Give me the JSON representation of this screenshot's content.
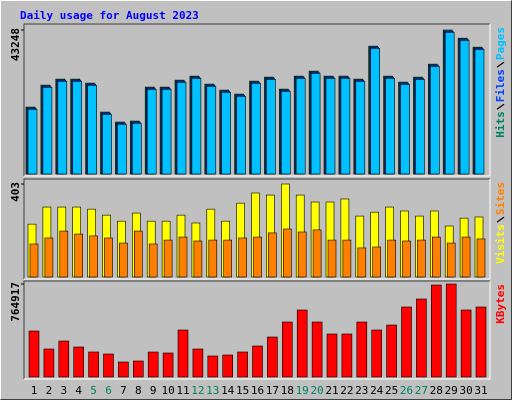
{
  "chart_data": [
    {
      "type": "bar",
      "title": "Daily usage for August 2023",
      "series": [
        {
          "name": "Hits",
          "color": "#00805c",
          "values": [
            20100,
            26700,
            28500,
            28500,
            27300,
            18600,
            15600,
            15900,
            26100,
            26100,
            28200,
            29400,
            27000,
            25200,
            24000,
            27900,
            29100,
            25500,
            29400,
            30900,
            29400,
            29400,
            28500,
            38400,
            29400,
            27600,
            29100,
            33000,
            43248,
            40800,
            38100
          ]
        },
        {
          "name": "Files",
          "color": "#0040ff",
          "values": [
            19800,
            26400,
            28200,
            28200,
            27000,
            18300,
            15300,
            15600,
            25800,
            25800,
            27900,
            29100,
            26700,
            24900,
            23700,
            27600,
            28800,
            25200,
            29100,
            30600,
            29100,
            29100,
            28200,
            38100,
            29100,
            27300,
            28800,
            32700,
            42900,
            40500,
            37800
          ]
        },
        {
          "name": "Pages",
          "color": "#00c0ff",
          "values": [
            19400,
            26000,
            27800,
            27800,
            26600,
            17900,
            14900,
            15200,
            25400,
            25400,
            27500,
            28700,
            26300,
            24500,
            23300,
            27200,
            28400,
            24800,
            28700,
            30200,
            28700,
            28700,
            27800,
            37700,
            28700,
            26900,
            28400,
            32300,
            42500,
            40100,
            37400
          ]
        }
      ],
      "ylim": [
        0,
        43248
      ],
      "yticks": [
        43248
      ]
    },
    {
      "type": "bar",
      "series": [
        {
          "name": "Visits",
          "color": "#ffff00",
          "values": [
            229,
            303,
            303,
            303,
            294,
            268,
            242,
            277,
            242,
            242,
            268,
            234,
            294,
            242,
            320,
            364,
            355,
            403,
            355,
            325,
            325,
            338,
            264,
            281,
            303,
            286,
            264,
            286,
            221,
            255,
            260
          ]
        },
        {
          "name": "Sites",
          "color": "#ff8000",
          "values": [
            143,
            169,
            199,
            186,
            178,
            169,
            147,
            199,
            143,
            160,
            173,
            156,
            160,
            160,
            169,
            173,
            191,
            208,
            195,
            204,
            160,
            160,
            126,
            130,
            160,
            156,
            160,
            173,
            147,
            173,
            165
          ]
        }
      ],
      "ylim": [
        0,
        403
      ],
      "yticks": [
        403
      ]
    },
    {
      "type": "bar",
      "categories": [
        "1",
        "2",
        "3",
        "4",
        "5",
        "6",
        "7",
        "8",
        "9",
        "10",
        "11",
        "12",
        "13",
        "14",
        "15",
        "16",
        "17",
        "18",
        "19",
        "20",
        "21",
        "22",
        "23",
        "24",
        "25",
        "26",
        "27",
        "28",
        "29",
        "30",
        "31"
      ],
      "category_colors": [
        "#000000",
        "#000000",
        "#000000",
        "#000000",
        "#00805c",
        "#00805c",
        "#000000",
        "#000000",
        "#000000",
        "#000000",
        "#000000",
        "#00805c",
        "#00805c",
        "#000000",
        "#000000",
        "#000000",
        "#000000",
        "#000000",
        "#00805c",
        "#00805c",
        "#000000",
        "#000000",
        "#000000",
        "#000000",
        "#000000",
        "#00805c",
        "#00805c",
        "#000000",
        "#000000",
        "#000000",
        "#000000"
      ],
      "series": [
        {
          "name": "KBytes",
          "color": "#ff0000",
          "values": [
            378350,
            230300,
            296100,
            246750,
            205625,
            189175,
            123375,
            131600,
            205625,
            197400,
            386575,
            230300,
            172725,
            180950,
            205625,
            254975,
            329000,
            452375,
            551075,
            452375,
            353675,
            353675,
            452375,
            386575,
            427700,
            575750,
            641550,
            756700,
            764917,
            551075,
            575750
          ]
        }
      ],
      "ylim": [
        0,
        764917
      ],
      "yticks": [
        764917
      ]
    }
  ]
}
